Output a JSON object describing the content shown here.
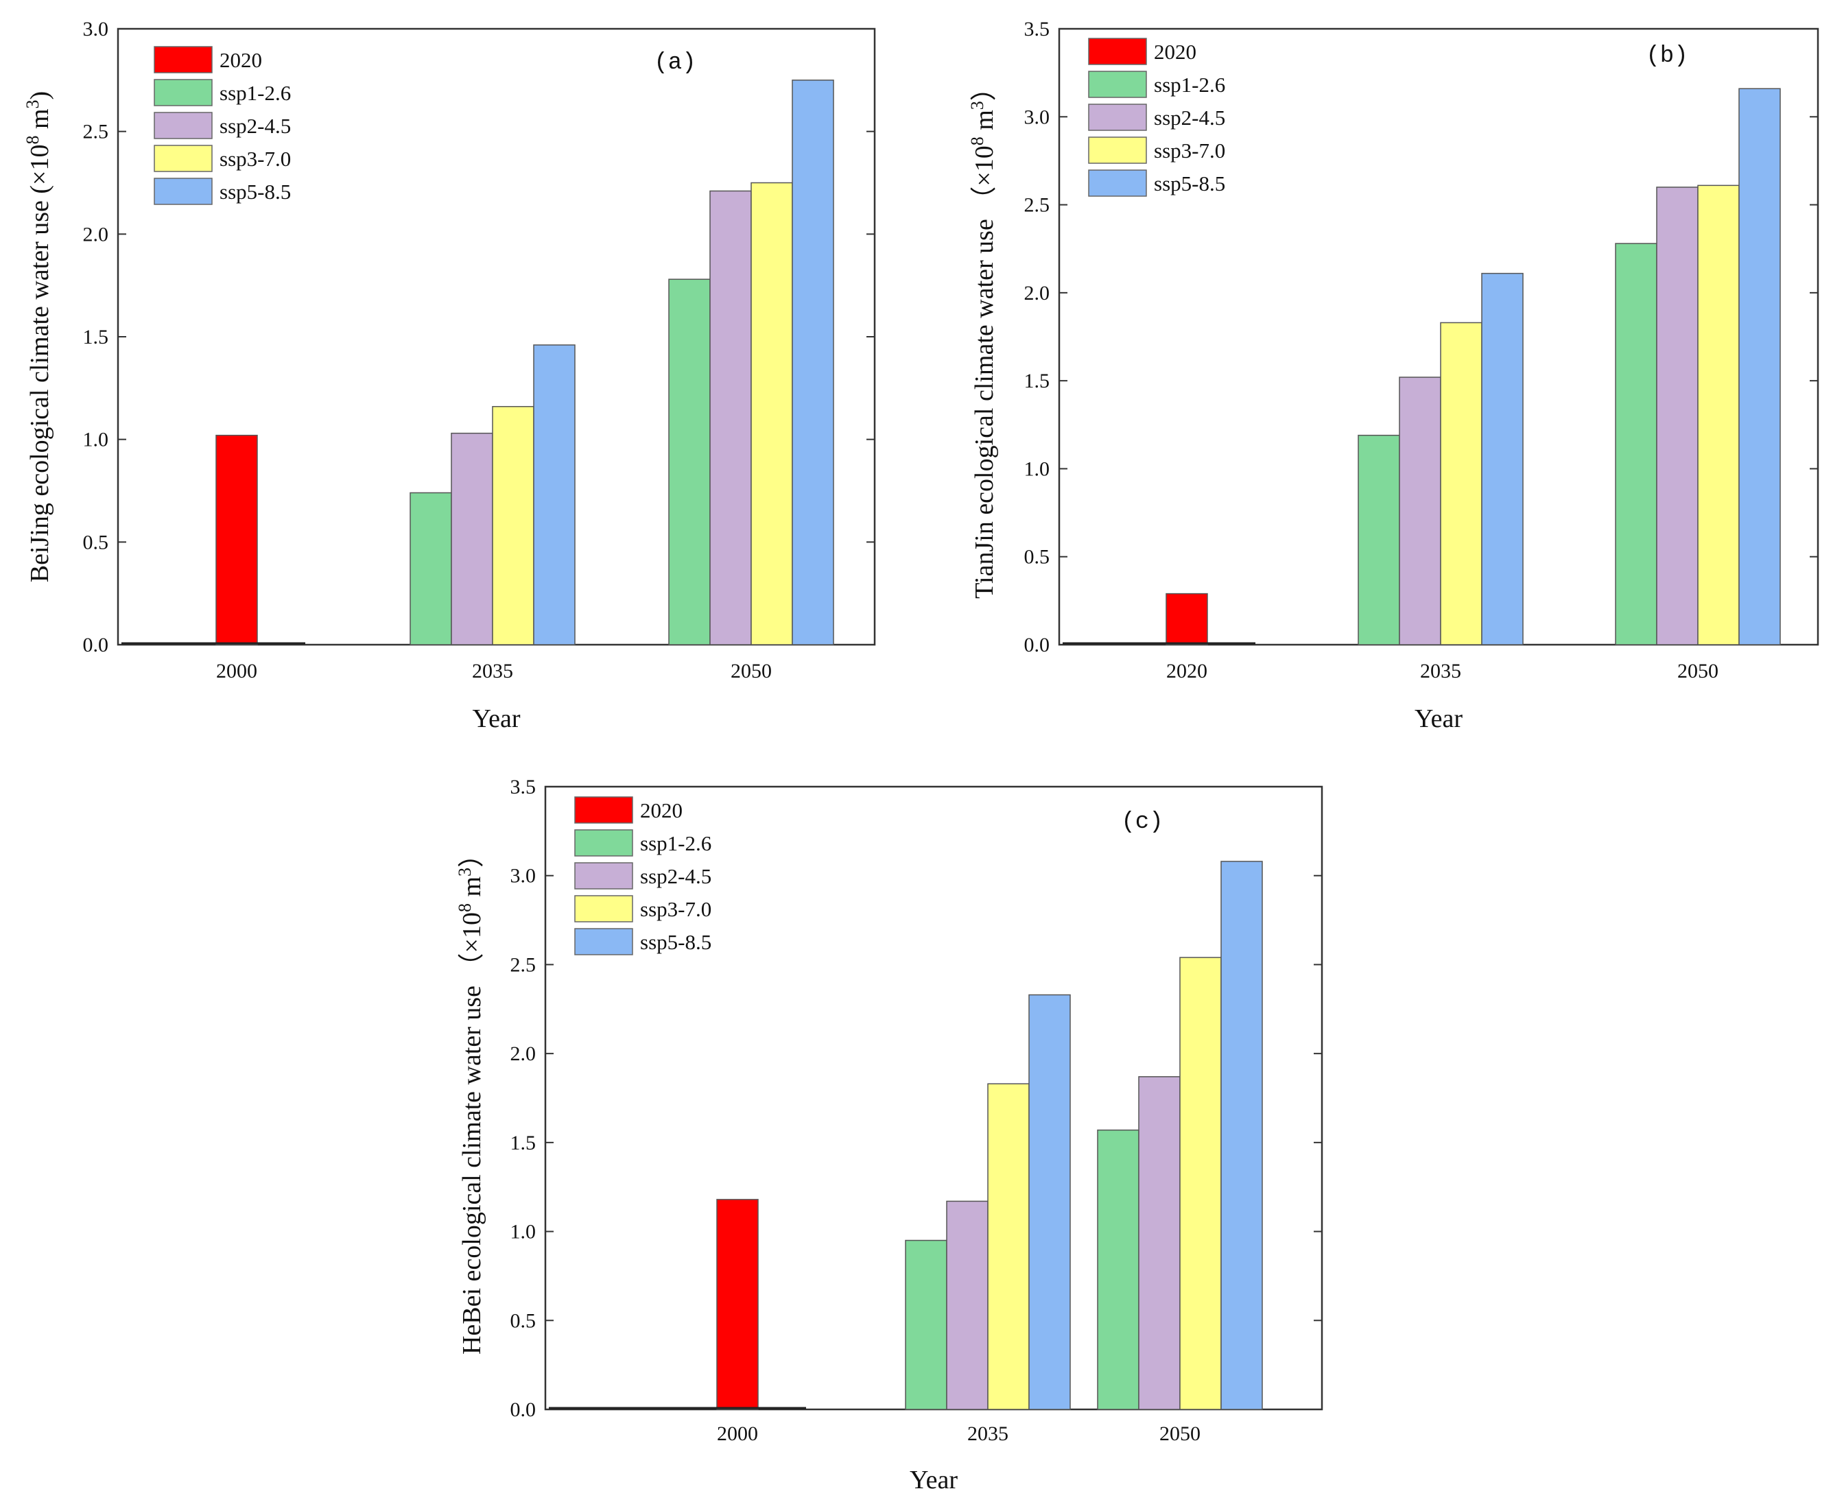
{
  "chart_data": [
    {
      "type": "bar",
      "panel_label": "(a)",
      "categories": [
        "2000",
        "2035",
        "2050"
      ],
      "series": [
        {
          "name": "2020",
          "values": [
            1.02,
            0,
            0
          ]
        },
        {
          "name": "ssp1-2.6",
          "values": [
            0,
            0.74,
            1.78
          ]
        },
        {
          "name": "ssp2-4.5",
          "values": [
            0,
            1.03,
            2.21
          ]
        },
        {
          "name": "ssp3-7.0",
          "values": [
            0,
            1.16,
            2.25
          ]
        },
        {
          "name": "ssp5-8.5",
          "values": [
            0,
            1.46,
            2.75
          ]
        }
      ],
      "xlabel": "Year",
      "ylabel_main": "BeiJing ecological climate water use (×10",
      "ylabel_exp1": "8",
      "ylabel_mid": " m",
      "ylabel_exp2": "3",
      "ylabel_end": ")",
      "ylim": [
        0,
        3.0
      ],
      "yticks": [
        "0.0",
        "0.5",
        "1.0",
        "1.5",
        "2.0",
        "2.5",
        "3.0"
      ],
      "legend_position": "top-left",
      "grid": false
    },
    {
      "type": "bar",
      "panel_label": "(b)",
      "categories": [
        "2020",
        "2035",
        "2050"
      ],
      "series": [
        {
          "name": "2020",
          "values": [
            0.29,
            0,
            0
          ]
        },
        {
          "name": "ssp1-2.6",
          "values": [
            0,
            1.19,
            2.28
          ]
        },
        {
          "name": "ssp2-4.5",
          "values": [
            0,
            1.52,
            2.6
          ]
        },
        {
          "name": "ssp3-7.0",
          "values": [
            0,
            1.83,
            2.61
          ]
        },
        {
          "name": "ssp5-8.5",
          "values": [
            0,
            2.11,
            3.16
          ]
        }
      ],
      "xlabel": "Year",
      "ylabel_main": "TianJin ecological climate water use （×10",
      "ylabel_exp1": "8",
      "ylabel_mid": " m",
      "ylabel_exp2": "3",
      "ylabel_end": "）",
      "ylim": [
        0,
        3.5
      ],
      "yticks": [
        "0.0",
        "0.5",
        "1.0",
        "1.5",
        "2.0",
        "2.5",
        "3.0",
        "3.5"
      ],
      "legend_position": "top-left",
      "grid": false
    },
    {
      "type": "bar",
      "panel_label": "(c)",
      "categories": [
        "2000",
        "2035",
        "2050"
      ],
      "series": [
        {
          "name": "2020",
          "values": [
            1.18,
            0,
            0
          ]
        },
        {
          "name": "ssp1-2.6",
          "values": [
            0,
            0.95,
            1.57
          ]
        },
        {
          "name": "ssp2-4.5",
          "values": [
            0,
            1.17,
            1.87
          ]
        },
        {
          "name": "ssp3-7.0",
          "values": [
            0,
            1.83,
            2.54
          ]
        },
        {
          "name": "ssp5-8.5",
          "values": [
            0,
            2.33,
            3.08
          ]
        }
      ],
      "xlabel": "Year",
      "ylabel_main": "HeBei ecological climate water use （×10",
      "ylabel_exp1": "8",
      "ylabel_mid": " m",
      "ylabel_exp2": "3",
      "ylabel_end": "）",
      "ylim": [
        0,
        3.5
      ],
      "yticks": [
        "0.0",
        "0.5",
        "1.0",
        "1.5",
        "2.0",
        "2.5",
        "3.0",
        "3.5"
      ],
      "legend_position": "top-left",
      "grid": false
    }
  ],
  "colors": {
    "2020": "#ff0000",
    "ssp1-2.6": "#80d99a",
    "ssp2-4.5": "#c7afd6",
    "ssp3-7.0": "#ffff88",
    "ssp5-8.5": "#8ab8f4"
  }
}
